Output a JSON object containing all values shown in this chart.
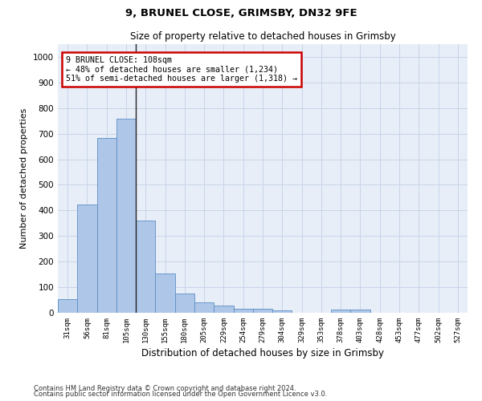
{
  "title1": "9, BRUNEL CLOSE, GRIMSBY, DN32 9FE",
  "title2": "Size of property relative to detached houses in Grimsby",
  "xlabel": "Distribution of detached houses by size in Grimsby",
  "ylabel": "Number of detached properties",
  "bar_labels": [
    "31sqm",
    "56sqm",
    "81sqm",
    "105sqm",
    "130sqm",
    "155sqm",
    "180sqm",
    "205sqm",
    "229sqm",
    "254sqm",
    "279sqm",
    "304sqm",
    "329sqm",
    "353sqm",
    "378sqm",
    "403sqm",
    "428sqm",
    "453sqm",
    "477sqm",
    "502sqm",
    "527sqm"
  ],
  "bar_values": [
    52,
    422,
    683,
    760,
    360,
    153,
    75,
    40,
    27,
    17,
    17,
    9,
    0,
    0,
    12,
    12,
    0,
    0,
    0,
    0,
    0
  ],
  "bar_color": "#aec6e8",
  "bar_edge_color": "#5b8ec4",
  "vline_x": 3.5,
  "annotation_text": "9 BRUNEL CLOSE: 108sqm\n← 48% of detached houses are smaller (1,234)\n51% of semi-detached houses are larger (1,318) →",
  "annotation_box_color": "#ffffff",
  "annotation_box_edge": "#cc0000",
  "ylim": [
    0,
    1050
  ],
  "yticks": [
    0,
    100,
    200,
    300,
    400,
    500,
    600,
    700,
    800,
    900,
    1000
  ],
  "grid_color": "#c8d4e8",
  "bg_color": "#e8eef8",
  "footnote1": "Contains HM Land Registry data © Crown copyright and database right 2024.",
  "footnote2": "Contains public sector information licensed under the Open Government Licence v3.0."
}
